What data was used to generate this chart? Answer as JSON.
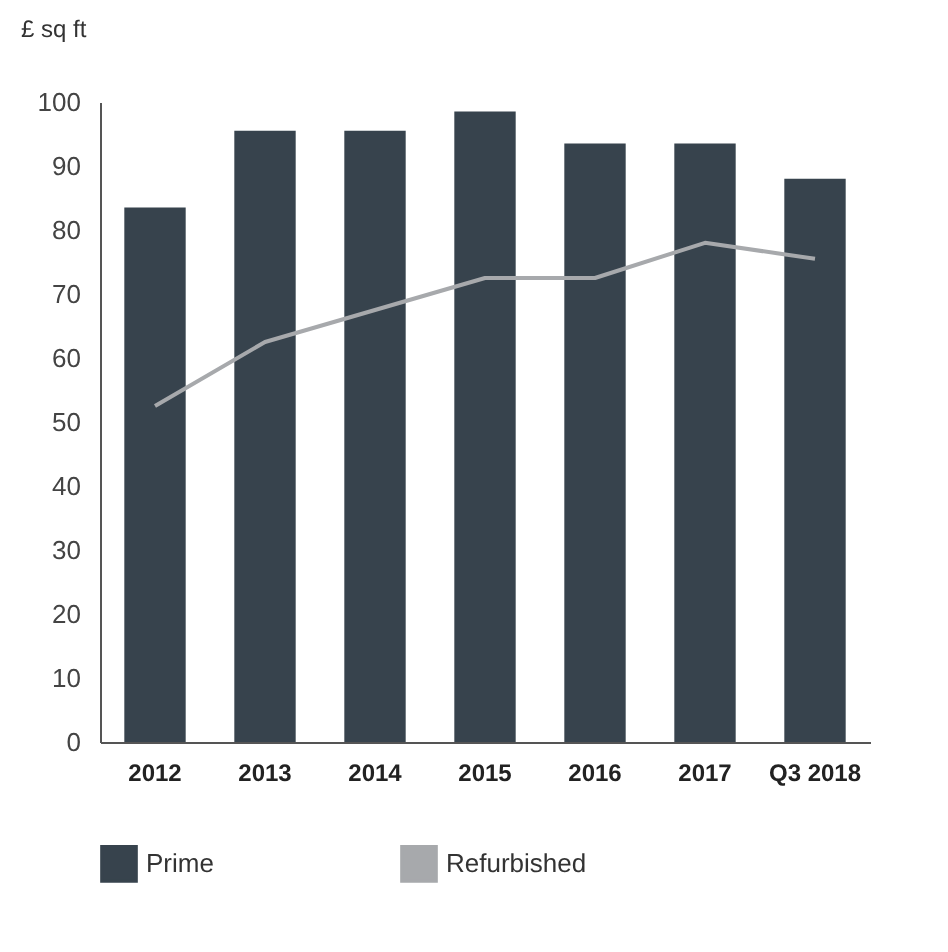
{
  "chart_data": {
    "type": "bar",
    "ylabel": "£ sq ft",
    "categories": [
      "2012",
      "2013",
      "2014",
      "2015",
      "2016",
      "2017",
      "Q3 2018"
    ],
    "series": [
      {
        "name": "Prime",
        "color": "#37434d",
        "values": [
          83.5,
          95.5,
          95.5,
          98.5,
          93.5,
          93.5,
          88
        ]
      },
      {
        "name": "Refurbished",
        "type": "line",
        "color": "#a7a9ac",
        "values": [
          52.5,
          62.5,
          67.5,
          72.5,
          72.5,
          78,
          75.5
        ]
      }
    ],
    "ylim": [
      0,
      100
    ],
    "yticks": [
      0,
      10,
      20,
      30,
      40,
      50,
      60,
      70,
      80,
      90,
      100
    ],
    "grid": false,
    "legend": "bottom",
    "marker": "none"
  }
}
